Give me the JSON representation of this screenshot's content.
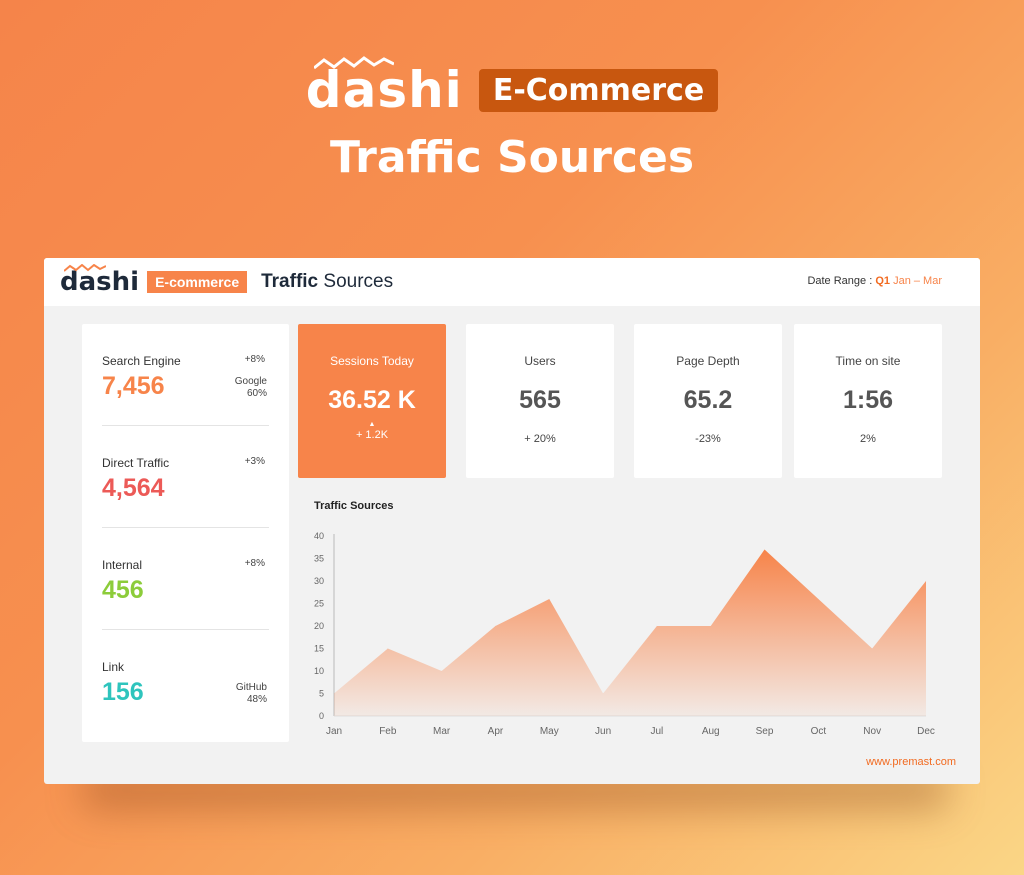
{
  "hero": {
    "logo": "dashi",
    "badge": "E-Commerce",
    "title": "Traffic Sources"
  },
  "dashboard": {
    "logo": "dashi",
    "badge": "E-commerce",
    "title_bold": "Traffic",
    "title_rest": " Sources",
    "date_range_label": "Date Range :",
    "date_range_quarter": "Q1",
    "date_range_months": "Jan – Mar",
    "footer_url": "www.premast.com"
  },
  "sources": [
    {
      "label": "Search Engine",
      "value": "7,456",
      "change": "+8%",
      "ref_name": "Google",
      "ref_pct": "60%",
      "color": "#f7844a"
    },
    {
      "label": "Direct Traffic",
      "value": "4,564",
      "change": "+3%",
      "ref_name": "",
      "ref_pct": "",
      "color": "#ec5a57"
    },
    {
      "label": "Internal",
      "value": "456",
      "change": "+8%",
      "ref_name": "",
      "ref_pct": "",
      "color": "#8ccc3a"
    },
    {
      "label": "Link",
      "value": "156",
      "change": "",
      "ref_name": "GitHub",
      "ref_pct": "48%",
      "color": "#2ec4bd"
    }
  ],
  "kpis": [
    {
      "label": "Sessions Today",
      "value": "36.52 K",
      "delta": "+ 1.2K",
      "active": true
    },
    {
      "label": "Users",
      "value": "565",
      "delta": "+ 20%",
      "active": false
    },
    {
      "label": "Page Depth",
      "value": "65.2",
      "delta": "-23%",
      "active": false
    },
    {
      "label": "Time on site",
      "value": "1:56",
      "delta": "2%",
      "active": false
    }
  ],
  "chart_data": {
    "type": "area",
    "title": "Traffic Sources",
    "categories": [
      "Jan",
      "Feb",
      "Mar",
      "Apr",
      "May",
      "Jun",
      "Jul",
      "Aug",
      "Sep",
      "Oct",
      "Nov",
      "Dec"
    ],
    "values": [
      5,
      15,
      10,
      20,
      26,
      5,
      20,
      20,
      37,
      26,
      15,
      30
    ],
    "yticks": [
      0,
      5,
      10,
      15,
      20,
      25,
      30,
      35,
      40
    ],
    "ylim": [
      0,
      40
    ],
    "grid": false,
    "color": "#f7844a"
  }
}
